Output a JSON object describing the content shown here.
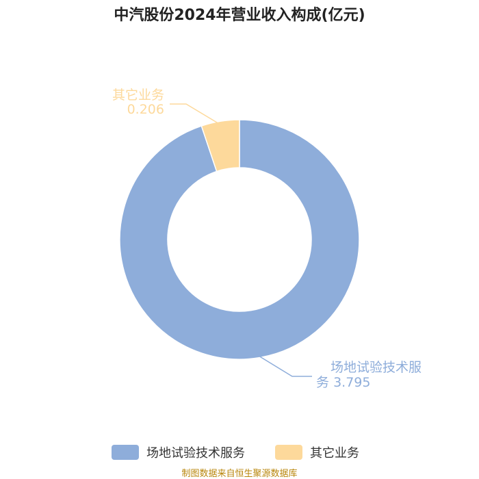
{
  "chart_data": {
    "type": "pie",
    "donut": true,
    "title": "中汽股份2024年营业收入构成(亿元)",
    "series": [
      {
        "name": "场地试验技术服务",
        "value": 3.795,
        "value_label": "3.795",
        "label_line1": "场地试验技术服",
        "label_line2": "务",
        "color": "#8eadda"
      },
      {
        "name": "其它业务",
        "value": 0.206,
        "value_label": "0.206",
        "label_line1": "其它业务",
        "label_line2": "",
        "color": "#fdd99b"
      }
    ],
    "legend_position": "bottom",
    "source": "制图数据来自恒生聚源数据库"
  }
}
